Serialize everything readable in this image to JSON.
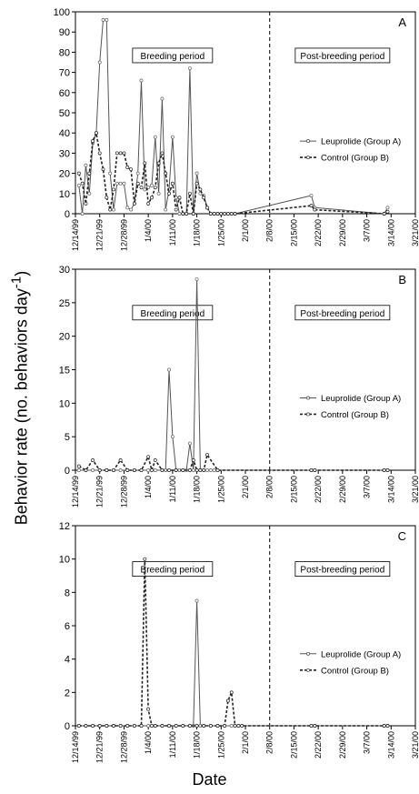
{
  "figure": {
    "ylabel": "Behavior rate (no. behaviors day",
    "ylabel_sup": "-1",
    "ylabel_close": ")",
    "xlabel": "Date"
  },
  "chart_data": [
    {
      "type": "line",
      "panel_label": "A",
      "x_tick_labels": [
        "12/14/99",
        "12/21/99",
        "12/28/99",
        "1/4/00",
        "1/11/00",
        "1/18/00",
        "1/25/00",
        "2/1/00",
        "2/8/00",
        "2/15/00",
        "2/22/00",
        "2/29/00",
        "3/7/00",
        "3/14/00",
        "3/21/00"
      ],
      "ylim": [
        0,
        100
      ],
      "y_ticks": [
        0,
        10,
        20,
        30,
        40,
        50,
        60,
        70,
        80,
        90,
        100
      ],
      "divider_x": 56,
      "period_labels": [
        "Breeding period",
        "Post-breeding period"
      ],
      "series": [
        {
          "name": "Leuprolide (Group A)",
          "style": "solid",
          "x": [
            1,
            2,
            3,
            4,
            5,
            6,
            7,
            8,
            9,
            10,
            11,
            12,
            13,
            14,
            15,
            16,
            17,
            18,
            19,
            20,
            21,
            22,
            23,
            24,
            25,
            26,
            27,
            28,
            29,
            30,
            31,
            32,
            33,
            34,
            35,
            36,
            37,
            38,
            39,
            40,
            41,
            42,
            43,
            44,
            45,
            46,
            68,
            69,
            89,
            90
          ],
          "y": [
            14,
            0,
            24,
            10,
            35,
            40,
            75,
            96,
            96,
            20,
            2,
            15,
            15,
            15,
            3,
            2,
            5,
            20,
            66,
            12,
            13,
            14,
            38,
            10,
            57,
            2,
            12,
            38,
            8,
            0,
            0,
            0,
            72,
            0,
            20,
            10,
            9,
            3,
            0,
            0,
            0,
            0,
            0,
            0,
            0,
            0,
            9,
            3,
            0,
            3
          ]
        },
        {
          "name": "Control (Group B)",
          "style": "dashed",
          "x": [
            1,
            2,
            3,
            4,
            5,
            6,
            7,
            8,
            9,
            10,
            11,
            12,
            13,
            14,
            15,
            16,
            17,
            18,
            19,
            20,
            21,
            22,
            23,
            24,
            25,
            26,
            27,
            28,
            29,
            30,
            31,
            32,
            33,
            34,
            35,
            36,
            37,
            38,
            39,
            40,
            41,
            42,
            43,
            44,
            45,
            46,
            68,
            69,
            89,
            90
          ],
          "y": [
            20,
            15,
            5,
            20,
            36,
            40,
            30,
            22,
            8,
            2,
            12,
            30,
            30,
            30,
            23,
            22,
            5,
            15,
            13,
            25,
            5,
            8,
            13,
            25,
            30,
            20,
            10,
            15,
            2,
            8,
            0,
            0,
            10,
            0,
            15,
            12,
            8,
            3,
            0,
            0,
            0,
            0,
            0,
            0,
            0,
            0,
            4,
            2,
            0,
            1
          ]
        }
      ]
    },
    {
      "type": "line",
      "panel_label": "B",
      "x_tick_labels": [
        "12/14/99",
        "12/21/99",
        "12/28/99",
        "1/4/00",
        "1/11/00",
        "1/18/00",
        "1/25/00",
        "2/1/00",
        "2/8/00",
        "2/15/00",
        "2/22/00",
        "2/29/00",
        "3/7/00",
        "3/14/00",
        "3/21/00"
      ],
      "ylim": [
        0,
        30
      ],
      "y_ticks": [
        0,
        5,
        10,
        15,
        20,
        25,
        30
      ],
      "divider_x": 56,
      "period_labels": [
        "Breeding period",
        "Post-breeding period"
      ],
      "series": [
        {
          "name": "Leuprolide (Group A)",
          "style": "solid",
          "x": [
            1,
            3,
            5,
            7,
            9,
            11,
            13,
            15,
            17,
            19,
            21,
            23,
            25,
            26,
            27,
            28,
            29,
            30,
            31,
            32,
            33,
            34,
            35,
            36,
            37,
            38,
            39,
            40,
            41,
            68,
            69,
            89,
            90
          ],
          "y": [
            0,
            0,
            0,
            0,
            0,
            0,
            0,
            0,
            0,
            0,
            0,
            0,
            0,
            0,
            15,
            5,
            0,
            0,
            0,
            0,
            4,
            0,
            28.5,
            0,
            0,
            0,
            0,
            0,
            0,
            0,
            0,
            0,
            0
          ]
        },
        {
          "name": "Control (Group B)",
          "style": "dashed",
          "x": [
            1,
            3,
            5,
            7,
            9,
            11,
            13,
            15,
            17,
            19,
            21,
            22,
            23,
            25,
            27,
            29,
            31,
            33,
            34,
            35,
            36,
            37,
            38,
            41,
            68,
            69,
            89,
            90
          ],
          "y": [
            0.6,
            0,
            1.5,
            0,
            0,
            0,
            1.5,
            0,
            0,
            0,
            2,
            0,
            1.5,
            0,
            0,
            0,
            0,
            0,
            1.5,
            0,
            0,
            0,
            2.3,
            0,
            0,
            0,
            0,
            0
          ]
        }
      ]
    },
    {
      "type": "line",
      "panel_label": "C",
      "x_tick_labels": [
        "12/14/99",
        "12/21/99",
        "12/28/99",
        "1/4/00",
        "1/11/00",
        "1/18/00",
        "1/25/00",
        "2/1/00",
        "2/8/00",
        "2/15/00",
        "2/22/00",
        "2/29/00",
        "3/7/00",
        "3/14/00",
        "3/21/00"
      ],
      "ylim": [
        0,
        12
      ],
      "y_ticks": [
        0,
        2,
        4,
        6,
        8,
        10,
        12
      ],
      "divider_x": 56,
      "period_labels": [
        "Breeding period",
        "Post-breeding period"
      ],
      "series": [
        {
          "name": "Leuprolide (Group A)",
          "style": "solid",
          "x": [
            1,
            3,
            5,
            7,
            9,
            11,
            13,
            15,
            17,
            19,
            21,
            23,
            25,
            27,
            29,
            31,
            33,
            34,
            35,
            36,
            37,
            39,
            41,
            43,
            45,
            47,
            68,
            69,
            89,
            90
          ],
          "y": [
            0,
            0,
            0,
            0,
            0,
            0,
            0,
            0,
            0,
            0,
            0,
            0,
            0,
            0,
            0,
            0,
            0,
            0,
            7.5,
            0,
            0,
            0,
            0,
            0,
            0,
            0,
            0,
            0,
            0,
            0
          ]
        },
        {
          "name": "Control (Group B)",
          "style": "dashed",
          "x": [
            1,
            3,
            5,
            7,
            9,
            11,
            13,
            15,
            17,
            19,
            20,
            21,
            22,
            23,
            25,
            27,
            29,
            31,
            33,
            35,
            37,
            39,
            41,
            43,
            44,
            45,
            46,
            47,
            48,
            68,
            69,
            89,
            90
          ],
          "y": [
            0,
            0,
            0,
            0,
            0,
            0,
            0,
            0,
            0,
            0,
            10,
            1,
            0,
            0,
            0,
            0,
            0,
            0,
            0,
            0,
            0,
            0,
            0,
            0,
            1.5,
            2,
            0,
            0,
            0,
            0,
            0,
            0,
            0
          ]
        }
      ]
    }
  ]
}
